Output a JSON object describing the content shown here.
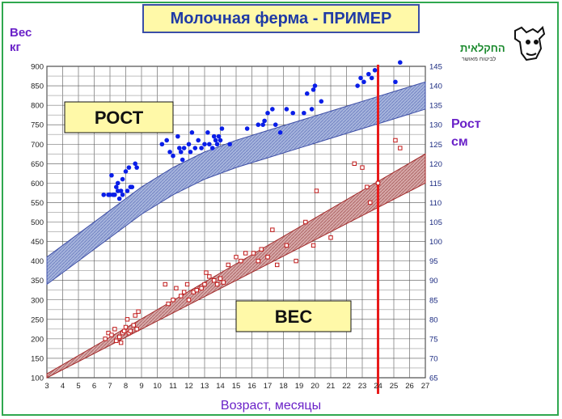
{
  "title": "Молочная ферма - ПРИМЕР",
  "logo": {
    "text_main": "החקלאית",
    "text_sub": "לביטוח מאושר"
  },
  "colors": {
    "frame": "#2fa84f",
    "title_bg": "#fff9a8",
    "title_text": "#1f3aa6",
    "axis_title": "#6a22c8",
    "height_band": "#9aaad6",
    "height_band_edge": "#3e4fa6",
    "weight_band": "#c89494",
    "weight_band_edge": "#a32a2a",
    "height_points": "#0a1ee8",
    "weight_points": "#c01a1a",
    "marker_line": "#e81a1a",
    "label_box": "#fff9a8"
  },
  "chart_data": {
    "type": "scatter",
    "xlabel": "Возраст, месяцы",
    "ylabel_left": "Вес кг",
    "ylabel_right": "Рост см",
    "xlim": [
      3,
      27
    ],
    "ylim_left": [
      100,
      900
    ],
    "ylim_right": [
      65,
      145
    ],
    "x_ticks": [
      3,
      4,
      5,
      6,
      7,
      8,
      9,
      10,
      11,
      12,
      13,
      14,
      15,
      16,
      17,
      18,
      19,
      20,
      21,
      22,
      23,
      24,
      25,
      26,
      27
    ],
    "y_left_ticks": [
      100,
      150,
      200,
      250,
      300,
      350,
      400,
      450,
      500,
      550,
      600,
      650,
      700,
      750,
      800,
      850,
      900
    ],
    "y_right_ticks": [
      65,
      70,
      75,
      80,
      85,
      90,
      95,
      100,
      105,
      110,
      115,
      120,
      125,
      130,
      135,
      140,
      145
    ],
    "grid": true,
    "marker_x": 24,
    "box_labels": {
      "height": "РОСТ",
      "weight": "ВЕС"
    },
    "height_band": {
      "x": [
        3,
        5,
        7,
        9,
        11,
        13,
        15,
        17,
        19,
        21,
        23,
        25,
        27
      ],
      "upper": [
        96,
        102,
        108,
        114,
        119,
        123,
        126,
        128.5,
        131,
        133.5,
        136,
        138.5,
        141
      ],
      "lower": [
        89,
        95,
        101,
        107,
        112,
        116,
        119,
        121.5,
        124,
        126.5,
        129,
        131.5,
        134
      ]
    },
    "weight_band": {
      "x": [
        3,
        27
      ],
      "upper": [
        110,
        675
      ],
      "lower": [
        100,
        600
      ]
    },
    "series": [
      {
        "name": "РОСТ",
        "axis": "right",
        "points": [
          [
            6.6,
            112
          ],
          [
            6.9,
            112
          ],
          [
            7.0,
            112
          ],
          [
            7.1,
            117
          ],
          [
            7.2,
            112
          ],
          [
            7.3,
            112
          ],
          [
            7.4,
            114
          ],
          [
            7.5,
            113
          ],
          [
            7.5,
            115
          ],
          [
            7.6,
            111
          ],
          [
            7.7,
            113
          ],
          [
            7.8,
            112
          ],
          [
            7.8,
            116
          ],
          [
            8.0,
            118
          ],
          [
            8.1,
            113
          ],
          [
            8.2,
            119
          ],
          [
            8.3,
            114
          ],
          [
            8.4,
            114
          ],
          [
            8.6,
            120
          ],
          [
            8.7,
            119
          ],
          [
            10.3,
            125
          ],
          [
            10.6,
            126
          ],
          [
            10.8,
            123
          ],
          [
            11.0,
            122
          ],
          [
            11.3,
            127
          ],
          [
            11.4,
            124
          ],
          [
            11.5,
            123
          ],
          [
            11.6,
            121
          ],
          [
            11.7,
            124
          ],
          [
            12.0,
            125
          ],
          [
            12.1,
            123
          ],
          [
            12.2,
            128
          ],
          [
            12.4,
            124
          ],
          [
            12.6,
            126
          ],
          [
            12.8,
            124
          ],
          [
            13.0,
            125
          ],
          [
            13.2,
            128
          ],
          [
            13.3,
            125
          ],
          [
            13.5,
            124
          ],
          [
            13.6,
            127
          ],
          [
            13.7,
            126
          ],
          [
            13.8,
            125
          ],
          [
            13.9,
            127
          ],
          [
            14.0,
            126
          ],
          [
            14.1,
            129
          ],
          [
            14.6,
            125
          ],
          [
            15.7,
            129
          ],
          [
            16.4,
            130
          ],
          [
            16.7,
            130
          ],
          [
            16.8,
            131
          ],
          [
            17.0,
            133
          ],
          [
            17.3,
            134
          ],
          [
            17.5,
            130
          ],
          [
            17.8,
            128
          ],
          [
            18.2,
            134
          ],
          [
            18.6,
            133
          ],
          [
            19.3,
            133
          ],
          [
            19.5,
            138
          ],
          [
            19.8,
            134
          ],
          [
            19.9,
            139
          ],
          [
            20.0,
            140
          ],
          [
            20.4,
            136
          ],
          [
            22.7,
            140
          ],
          [
            22.9,
            142
          ],
          [
            23.1,
            141
          ],
          [
            23.4,
            143
          ],
          [
            23.6,
            142
          ],
          [
            23.8,
            144
          ],
          [
            25.1,
            141
          ],
          [
            25.4,
            146
          ]
        ]
      },
      {
        "name": "ВЕС",
        "axis": "left",
        "points": [
          [
            6.7,
            200
          ],
          [
            6.9,
            215
          ],
          [
            7.1,
            210
          ],
          [
            7.3,
            225
          ],
          [
            7.4,
            195
          ],
          [
            7.6,
            205
          ],
          [
            7.7,
            190
          ],
          [
            7.8,
            215
          ],
          [
            7.9,
            220
          ],
          [
            8.0,
            230
          ],
          [
            8.1,
            250
          ],
          [
            8.2,
            215
          ],
          [
            8.3,
            220
          ],
          [
            8.5,
            235
          ],
          [
            8.6,
            260
          ],
          [
            8.7,
            225
          ],
          [
            8.8,
            270
          ],
          [
            10.5,
            340
          ],
          [
            10.7,
            290
          ],
          [
            11.0,
            300
          ],
          [
            11.2,
            330
          ],
          [
            11.5,
            310
          ],
          [
            11.7,
            320
          ],
          [
            11.9,
            340
          ],
          [
            12.0,
            300
          ],
          [
            12.3,
            320
          ],
          [
            12.5,
            325
          ],
          [
            12.8,
            330
          ],
          [
            13.0,
            340
          ],
          [
            13.1,
            370
          ],
          [
            13.3,
            360
          ],
          [
            13.6,
            350
          ],
          [
            13.8,
            340
          ],
          [
            14.0,
            355
          ],
          [
            14.2,
            345
          ],
          [
            14.5,
            390
          ],
          [
            15.0,
            410
          ],
          [
            15.3,
            400
          ],
          [
            15.6,
            420
          ],
          [
            16.1,
            420
          ],
          [
            16.4,
            400
          ],
          [
            16.6,
            430
          ],
          [
            17.0,
            410
          ],
          [
            17.3,
            480
          ],
          [
            17.6,
            390
          ],
          [
            18.2,
            440
          ],
          [
            18.8,
            400
          ],
          [
            19.4,
            500
          ],
          [
            19.9,
            440
          ],
          [
            20.1,
            580
          ],
          [
            21.0,
            460
          ],
          [
            22.5,
            650
          ],
          [
            23.0,
            640
          ],
          [
            23.3,
            590
          ],
          [
            23.5,
            550
          ],
          [
            24.0,
            600
          ],
          [
            25.1,
            710
          ],
          [
            25.4,
            690
          ]
        ]
      }
    ]
  }
}
